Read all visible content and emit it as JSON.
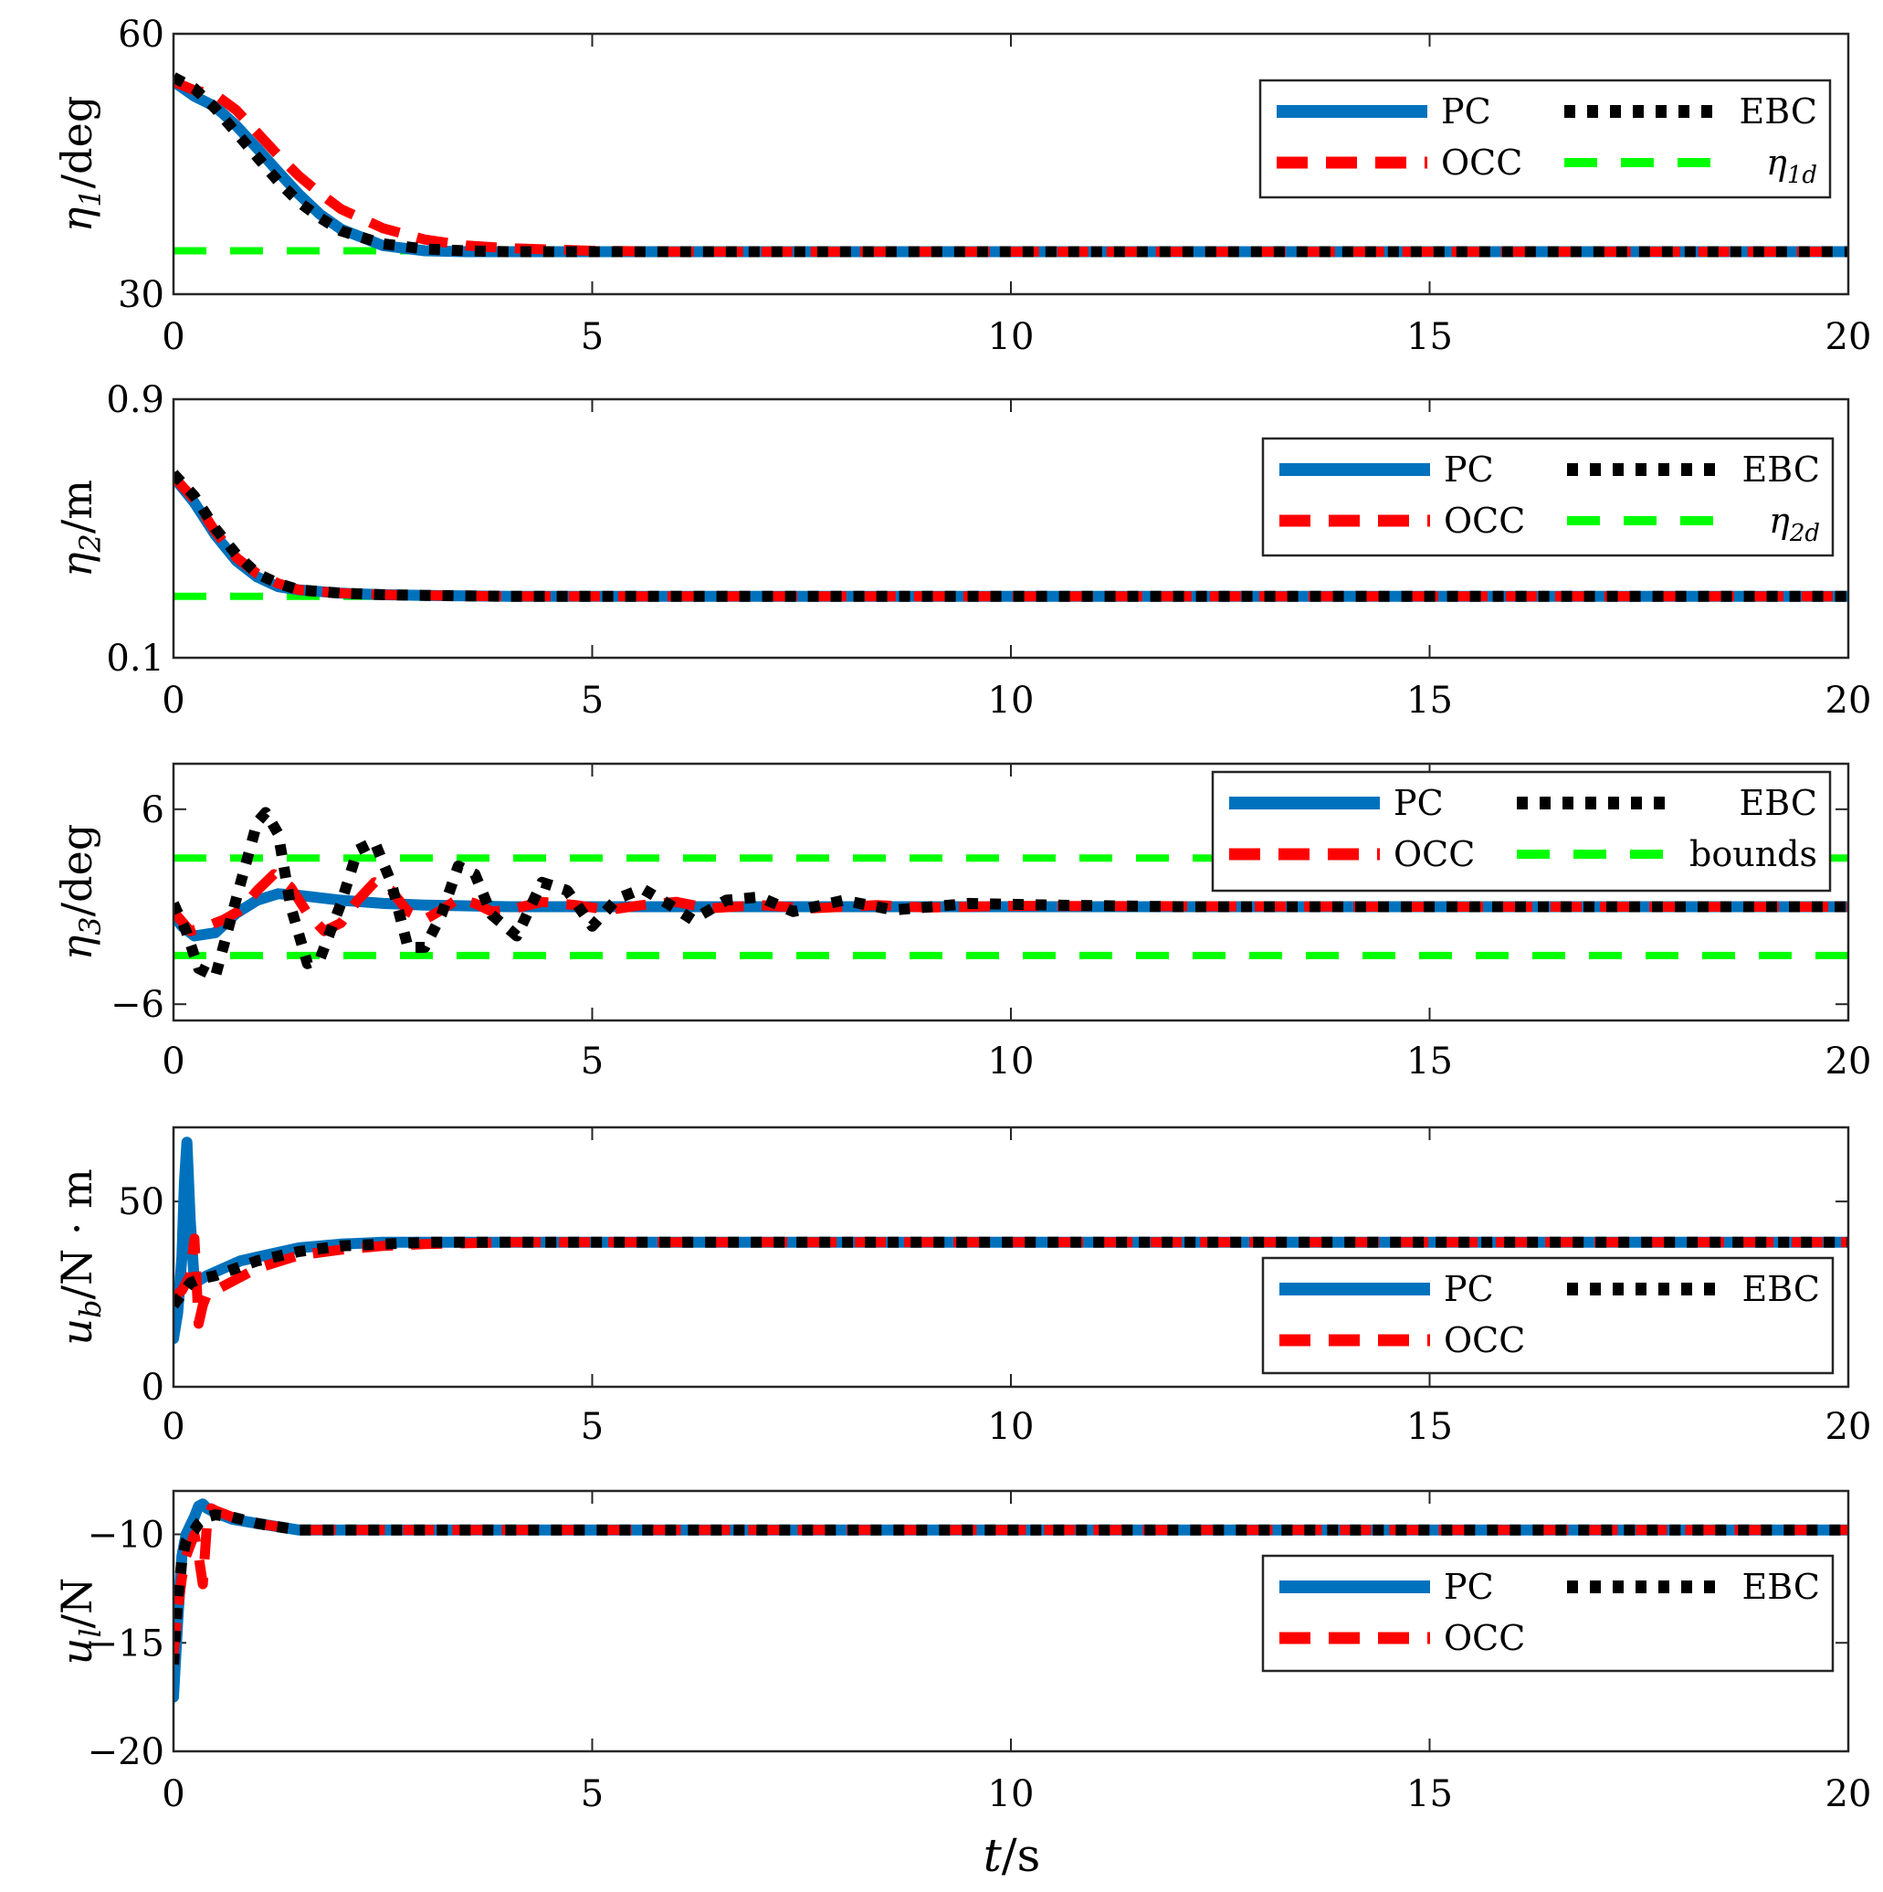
{
  "figure": {
    "xlabel_var": "t",
    "xlabel_unit": "/s",
    "colors": {
      "PC": "#0072BD",
      "OCC": "#FF0000",
      "EBC": "#000000",
      "ref": "#00FF00"
    }
  },
  "chart_data": [
    {
      "type": "line",
      "id": "eta1",
      "ylabel_var": "η",
      "ylabel_sub": "1",
      "ylabel_unit": "/deg",
      "xlim": [
        0,
        20
      ],
      "ylim": [
        30,
        60
      ],
      "xticks": [
        "0",
        "5",
        "10",
        "15",
        "20"
      ],
      "yticks": [
        "30",
        "60"
      ],
      "legend_position": "top-right",
      "legend": [
        {
          "label": "PC",
          "style": "solid",
          "color": "#0072BD"
        },
        {
          "label": "EBC",
          "style": "dotted",
          "color": "#000000"
        },
        {
          "label": "OCC",
          "style": "dashed",
          "color": "#FF0000"
        },
        {
          "label": "η",
          "sub": "1d",
          "style": "dashed",
          "color": "#00FF00"
        }
      ],
      "series": [
        {
          "name": "PC",
          "x": [
            0,
            0.25,
            0.5,
            0.75,
            1,
            1.25,
            1.5,
            1.75,
            2,
            2.5,
            3,
            3.5,
            4,
            5,
            6,
            8,
            10,
            15,
            20
          ],
          "y": [
            54.5,
            52.8,
            51.6,
            49.4,
            46.8,
            44.1,
            41.5,
            39.2,
            37.5,
            35.6,
            35.0,
            34.9,
            34.9,
            34.9,
            34.9,
            34.9,
            34.9,
            34.9,
            34.9
          ]
        },
        {
          "name": "OCC",
          "x": [
            0,
            0.25,
            0.5,
            0.75,
            1,
            1.25,
            1.5,
            1.75,
            2,
            2.5,
            3,
            3.5,
            4,
            5,
            6,
            8,
            10,
            15,
            20
          ],
          "y": [
            54.5,
            53.5,
            53.0,
            51.2,
            48.6,
            46.0,
            43.6,
            41.6,
            39.8,
            37.6,
            36.3,
            35.6,
            35.3,
            35.0,
            34.9,
            34.9,
            34.9,
            34.9,
            34.9
          ]
        },
        {
          "name": "EBC",
          "x": [
            0,
            0.25,
            0.5,
            0.75,
            1,
            1.25,
            1.5,
            1.75,
            2,
            2.5,
            3,
            3.5,
            4,
            5,
            6,
            8,
            10,
            15,
            20
          ],
          "y": [
            55.0,
            53.7,
            51.4,
            48.6,
            45.8,
            43.0,
            40.6,
            38.8,
            37.3,
            35.8,
            35.2,
            35.0,
            34.9,
            34.9,
            34.9,
            34.9,
            34.9,
            34.9,
            34.9
          ]
        },
        {
          "name": "η1d",
          "x": [
            0,
            20
          ],
          "y": [
            35,
            35
          ]
        }
      ]
    },
    {
      "type": "line",
      "id": "eta2",
      "ylabel_var": "η",
      "ylabel_sub": "2",
      "ylabel_unit": "/m",
      "xlim": [
        0,
        20
      ],
      "ylim": [
        0.1,
        0.9
      ],
      "xticks": [
        "0",
        "5",
        "10",
        "15",
        "20"
      ],
      "yticks": [
        "0.1",
        "0.9"
      ],
      "legend_position": "top-right",
      "legend": [
        {
          "label": "PC",
          "style": "solid",
          "color": "#0072BD"
        },
        {
          "label": "EBC",
          "style": "dotted",
          "color": "#000000"
        },
        {
          "label": "OCC",
          "style": "dashed",
          "color": "#FF0000"
        },
        {
          "label": "η",
          "sub": "2d",
          "style": "dashed",
          "color": "#00FF00"
        }
      ],
      "series": [
        {
          "name": "PC",
          "x": [
            0,
            0.25,
            0.5,
            0.75,
            1,
            1.25,
            1.5,
            2,
            2.5,
            3,
            4,
            5,
            10,
            20
          ],
          "y": [
            0.66,
            0.58,
            0.48,
            0.4,
            0.35,
            0.32,
            0.31,
            0.3,
            0.295,
            0.293,
            0.29,
            0.29,
            0.29,
            0.29
          ]
        },
        {
          "name": "OCC",
          "x": [
            0,
            0.25,
            0.5,
            0.75,
            1,
            1.25,
            1.5,
            2,
            2.5,
            3,
            4,
            5,
            10,
            20
          ],
          "y": [
            0.66,
            0.59,
            0.49,
            0.41,
            0.36,
            0.33,
            0.31,
            0.3,
            0.295,
            0.293,
            0.29,
            0.29,
            0.29,
            0.29
          ]
        },
        {
          "name": "EBC",
          "x": [
            0,
            0.25,
            0.5,
            0.75,
            1,
            1.25,
            1.5,
            2,
            2.5,
            3,
            4,
            5,
            10,
            20
          ],
          "y": [
            0.67,
            0.6,
            0.5,
            0.42,
            0.36,
            0.33,
            0.31,
            0.3,
            0.295,
            0.293,
            0.29,
            0.29,
            0.29,
            0.29
          ]
        },
        {
          "name": "η2d",
          "x": [
            0,
            20
          ],
          "y": [
            0.29,
            0.29
          ]
        }
      ]
    },
    {
      "type": "line",
      "id": "eta3",
      "ylabel_var": "η",
      "ylabel_sub": "3",
      "ylabel_unit": "/deg",
      "xlim": [
        0,
        20
      ],
      "ylim": [
        -7,
        8.8
      ],
      "xticks": [
        "0",
        "5",
        "10",
        "15",
        "20"
      ],
      "yticks": [
        "−6",
        "6"
      ],
      "ytick_values": [
        -6,
        6
      ],
      "legend_position": "top-right",
      "legend": [
        {
          "label": "PC",
          "style": "solid",
          "color": "#0072BD"
        },
        {
          "label": "EBC",
          "style": "dotted",
          "color": "#000000"
        },
        {
          "label": "OCC",
          "style": "dashed",
          "color": "#FF0000"
        },
        {
          "label": "bounds",
          "style": "dashed",
          "color": "#00FF00"
        }
      ],
      "series": [
        {
          "name": "PC",
          "x": [
            0,
            0.1,
            0.25,
            0.5,
            0.75,
            1,
            1.25,
            1.5,
            2,
            2.5,
            3,
            4,
            5,
            6,
            8,
            10,
            15,
            20
          ],
          "y": [
            -0.5,
            -1.2,
            -1.8,
            -1.6,
            -0.4,
            0.4,
            0.8,
            0.7,
            0.4,
            0.2,
            0.1,
            0,
            0,
            0,
            0,
            0,
            0,
            0
          ]
        },
        {
          "name": "OCC",
          "x": [
            0,
            0.2,
            0.4,
            0.6,
            0.8,
            1.0,
            1.2,
            1.4,
            1.6,
            1.8,
            2.0,
            2.2,
            2.4,
            2.6,
            2.8,
            3.0,
            3.2,
            3.4,
            3.6,
            3.8,
            4.0,
            4.4,
            4.8,
            5.2,
            5.6,
            6.0,
            6.4,
            7.0,
            7.6,
            8.4,
            9.0,
            10.0,
            15,
            20
          ],
          "y": [
            -0.3,
            -1.5,
            -1.2,
            -0.8,
            -0.2,
            1.0,
            2.0,
            1.2,
            -0.4,
            -1.5,
            -1.0,
            0.4,
            1.5,
            1.0,
            -0.3,
            -0.8,
            -0.2,
            0.5,
            0.2,
            -0.3,
            -0.2,
            0.3,
            0.1,
            -0.2,
            0.1,
            0.3,
            -0.1,
            0.1,
            -0.1,
            0.1,
            -0.05,
            0.05,
            0,
            0
          ]
        },
        {
          "name": "EBC",
          "x": [
            0,
            0.15,
            0.3,
            0.5,
            0.75,
            1.0,
            1.1,
            1.25,
            1.4,
            1.6,
            1.75,
            2.0,
            2.2,
            2.4,
            2.6,
            2.8,
            3.0,
            3.2,
            3.4,
            3.6,
            3.8,
            4.1,
            4.4,
            4.7,
            5.0,
            5.3,
            5.6,
            5.9,
            6.2,
            6.6,
            7.0,
            7.4,
            8.0,
            8.6,
            9.5,
            10.5,
            12,
            15,
            20
          ],
          "y": [
            0.2,
            -1.5,
            -3.8,
            -4.3,
            0.5,
            5.2,
            5.8,
            4.5,
            0,
            -3.5,
            -3.2,
            0.2,
            3.5,
            4.0,
            1.5,
            -2.5,
            -2.5,
            -0.5,
            2.5,
            2.0,
            -0.5,
            -1.8,
            1.5,
            1.0,
            -1.2,
            0.5,
            1.1,
            0.2,
            -0.8,
            0.4,
            0.6,
            -0.3,
            0.4,
            -0.2,
            0.2,
            0.1,
            0,
            0,
            0
          ]
        },
        {
          "name": "upper bound",
          "x": [
            0,
            20
          ],
          "y": [
            3,
            3
          ]
        },
        {
          "name": "lower bound",
          "x": [
            0,
            20
          ],
          "y": [
            -3,
            -3
          ]
        }
      ]
    },
    {
      "type": "line",
      "id": "ub",
      "ylabel_var": "u",
      "ylabel_sub": "b",
      "ylabel_unit": "/N · m",
      "xlim": [
        0,
        20
      ],
      "ylim": [
        0,
        70
      ],
      "xticks": [
        "0",
        "5",
        "10",
        "15",
        "20"
      ],
      "yticks": [
        "0",
        "50"
      ],
      "ytick_values": [
        0,
        50
      ],
      "legend_position": "bottom-right",
      "legend": [
        {
          "label": "PC",
          "style": "solid",
          "color": "#0072BD"
        },
        {
          "label": "EBC",
          "style": "dotted",
          "color": "#000000"
        },
        {
          "label": "OCC",
          "style": "dashed",
          "color": "#FF0000"
        }
      ],
      "series": [
        {
          "name": "PC",
          "x": [
            0,
            0.05,
            0.1,
            0.13,
            0.16,
            0.2,
            0.25,
            0.4,
            0.6,
            0.8,
            1,
            1.5,
            2,
            2.5,
            3,
            4,
            5,
            10,
            20
          ],
          "y": [
            13,
            20,
            35,
            55,
            66,
            45,
            28,
            30,
            32,
            34,
            35,
            37.5,
            38.5,
            39,
            39,
            39,
            39,
            39,
            39
          ]
        },
        {
          "name": "OCC",
          "x": [
            0,
            0.1,
            0.2,
            0.25,
            0.3,
            0.35,
            0.4,
            0.5,
            0.75,
            1,
            1.5,
            2,
            2.5,
            3,
            4,
            5,
            10,
            20
          ],
          "y": [
            24,
            26,
            30,
            40,
            17,
            22,
            25,
            26,
            29,
            32,
            35.5,
            37,
            38,
            38.5,
            39,
            39,
            39,
            39
          ]
        },
        {
          "name": "EBC",
          "x": [
            0,
            0.1,
            0.2,
            0.3,
            0.5,
            0.75,
            1,
            1.5,
            2,
            2.5,
            3,
            4,
            5,
            10,
            20
          ],
          "y": [
            22,
            25,
            28,
            29,
            30,
            32,
            34,
            36.5,
            38,
            38.5,
            39,
            39,
            39,
            39,
            39
          ]
        }
      ]
    },
    {
      "type": "line",
      "id": "ul",
      "ylabel_var": "u",
      "ylabel_sub": "l",
      "ylabel_unit": "/N",
      "xlim": [
        0,
        20
      ],
      "ylim": [
        -20,
        -8
      ],
      "xticks": [
        "0",
        "5",
        "10",
        "15",
        "20"
      ],
      "yticks": [
        "−20",
        "−15",
        "−10"
      ],
      "ytick_values": [
        -20,
        -15,
        -10
      ],
      "legend_position": "bottom-right",
      "legend": [
        {
          "label": "PC",
          "style": "solid",
          "color": "#0072BD"
        },
        {
          "label": "EBC",
          "style": "dotted",
          "color": "#000000"
        },
        {
          "label": "OCC",
          "style": "dashed",
          "color": "#FF0000"
        }
      ],
      "series": [
        {
          "name": "PC",
          "x": [
            0,
            0.05,
            0.1,
            0.15,
            0.2,
            0.25,
            0.3,
            0.35,
            0.4,
            0.5,
            0.7,
            1,
            1.5,
            2,
            3,
            5,
            10,
            20
          ],
          "y": [
            -17.5,
            -14,
            -11,
            -10,
            -9.6,
            -9.2,
            -8.7,
            -8.6,
            -8.8,
            -9,
            -9.3,
            -9.5,
            -9.8,
            -9.8,
            -9.8,
            -9.8,
            -9.8,
            -9.8
          ]
        },
        {
          "name": "OCC",
          "x": [
            0,
            0.05,
            0.1,
            0.15,
            0.2,
            0.25,
            0.3,
            0.35,
            0.4,
            0.45,
            0.5,
            0.7,
            1,
            1.5,
            2,
            3,
            5,
            10,
            20
          ],
          "y": [
            -15.5,
            -13.5,
            -12,
            -11,
            -10.5,
            -10,
            -11,
            -12.3,
            -9.5,
            -8.8,
            -8.9,
            -9.2,
            -9.5,
            -9.8,
            -9.8,
            -9.8,
            -9.8,
            -9.8,
            -9.8
          ]
        },
        {
          "name": "EBC",
          "x": [
            0,
            0.05,
            0.1,
            0.15,
            0.2,
            0.25,
            0.3,
            0.4,
            0.5,
            0.7,
            1,
            1.5,
            2,
            3,
            5,
            10,
            20
          ],
          "y": [
            -16,
            -13,
            -11.2,
            -10.3,
            -10,
            -9.8,
            -9.5,
            -9.2,
            -9.1,
            -9.2,
            -9.5,
            -9.8,
            -9.8,
            -9.8,
            -9.8,
            -9.8,
            -9.8
          ]
        }
      ]
    }
  ]
}
